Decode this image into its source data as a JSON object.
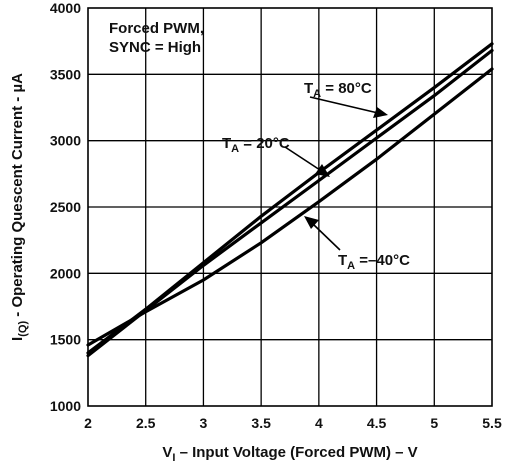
{
  "chart_data": {
    "type": "line",
    "xlabel": "V",
    "xlabel_sub": "I",
    "xlabel_rest": " – Input Voltage (Forced PWM) – V",
    "ylabel": "I",
    "ylabel_sub": "(Q)",
    "ylabel_rest": " - Operating Quescent Current - µA",
    "xlim": [
      2,
      5.5
    ],
    "ylim": [
      1000,
      4000
    ],
    "x_ticks": [
      "2",
      "2.5",
      "3",
      "3.5",
      "4",
      "4.5",
      "5",
      "5.5"
    ],
    "y_ticks": [
      "1000",
      "1500",
      "2000",
      "2500",
      "3000",
      "3500",
      "4000"
    ],
    "grid": true,
    "condition_line1": "Forced PWM,",
    "condition_line2": "SYNC = High",
    "series": [
      {
        "name": "80°C",
        "label_main": "T",
        "label_sub": "A",
        "label_rest": " = 80°C",
        "x": [
          2.0,
          2.5,
          3.0,
          3.5,
          4.0,
          4.5,
          5.0,
          5.5
        ],
        "y": [
          1400,
          1730,
          2080,
          2430,
          2760,
          3080,
          3400,
          3730
        ]
      },
      {
        "name": "20°C",
        "label_main": "T",
        "label_sub": "A",
        "label_rest": " = 20°C",
        "x": [
          2.0,
          2.5,
          3.0,
          3.5,
          4.0,
          4.5,
          5.0,
          5.5
        ],
        "y": [
          1380,
          1720,
          2060,
          2380,
          2700,
          3020,
          3340,
          3680
        ]
      },
      {
        "name": "-40°C",
        "label_main": "T",
        "label_sub": "A",
        "label_rest": " =–40°C",
        "x": [
          2.0,
          2.5,
          3.0,
          3.5,
          4.0,
          4.5,
          5.0,
          5.5
        ],
        "y": [
          1460,
          1710,
          1950,
          2230,
          2540,
          2860,
          3200,
          3540
        ]
      }
    ]
  }
}
